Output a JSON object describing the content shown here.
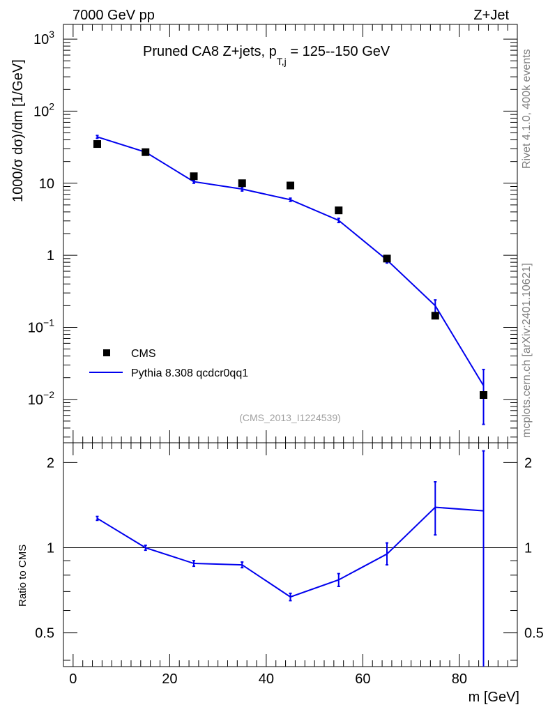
{
  "header": {
    "left": "7000 GeV pp",
    "right": "Z+Jet"
  },
  "side": {
    "top": "Rivet 4.1.0,  400k events",
    "bottom": "mcplots.cern.ch [arXiv:2401.10621]"
  },
  "chart_data": {
    "type": "scatter",
    "title": "Pruned CA8 Z+jets, p",
    "title_sub": "T,j",
    "title_tail": " = 125--150 GeV",
    "analysis_id": "(CMS_2013_I1224539)",
    "xlabel": "m [GeV]",
    "xlim": [
      -2,
      92
    ],
    "xticks": [
      0,
      20,
      40,
      60,
      80
    ],
    "main": {
      "ylabel": "1000/σ  dσ)/dm [1/GeV]",
      "yscale": "log",
      "ylim": [
        0.0025,
        1600
      ],
      "ytick_labels": [
        {
          "value": 1000,
          "base": "10",
          "exp": "3"
        },
        {
          "value": 100,
          "base": "10",
          "exp": "2"
        },
        {
          "value": 10,
          "base": "10",
          "exp": ""
        },
        {
          "value": 1,
          "base": "1",
          "exp": ""
        },
        {
          "value": 0.1,
          "base": "10",
          "exp": "−1"
        },
        {
          "value": 0.01,
          "base": "10",
          "exp": "−2"
        }
      ],
      "series": [
        {
          "name": "CMS",
          "style": "markers",
          "color": "#000000",
          "x": [
            5,
            15,
            25,
            35,
            45,
            55,
            65,
            75,
            85
          ],
          "y": [
            35,
            27,
            12.5,
            10,
            9.3,
            4.2,
            0.9,
            0.145,
            0.0115
          ]
        },
        {
          "name": "Pythia 8.308 qcdcr0qq1",
          "style": "line",
          "color": "#0000ee",
          "x": [
            5,
            15,
            25,
            35,
            45,
            55,
            65,
            75,
            85
          ],
          "y": [
            44,
            27,
            10.5,
            8.3,
            5.9,
            3.05,
            0.86,
            0.2,
            0.0155
          ],
          "yerr_low": [
            42,
            25.5,
            10,
            7.8,
            5.6,
            2.85,
            0.78,
            0.16,
            0.0045
          ],
          "yerr_high": [
            46,
            28.5,
            11,
            8.8,
            6.2,
            3.25,
            0.94,
            0.24,
            0.026
          ]
        }
      ]
    },
    "ratio": {
      "ylabel": "Ratio to CMS",
      "yscale": "log",
      "ylim": [
        0.38,
        2.35
      ],
      "yticks": [
        0.5,
        1,
        2
      ],
      "ytick_labels": [
        "0.5",
        "1",
        "2"
      ],
      "reference": 1,
      "series": [
        {
          "name": "Pythia 8.308 qcdcr0qq1",
          "color": "#0000ee",
          "x": [
            5,
            15,
            25,
            35,
            45,
            55,
            65,
            75,
            85
          ],
          "y": [
            1.27,
            1.0,
            0.88,
            0.87,
            0.67,
            0.77,
            0.95,
            1.39,
            1.35
          ],
          "yerr_low": [
            1.25,
            0.98,
            0.86,
            0.85,
            0.65,
            0.73,
            0.87,
            1.11,
            0.35
          ],
          "yerr_high": [
            1.29,
            1.02,
            0.9,
            0.89,
            0.69,
            0.81,
            1.04,
            1.71,
            2.2
          ]
        }
      ]
    }
  }
}
